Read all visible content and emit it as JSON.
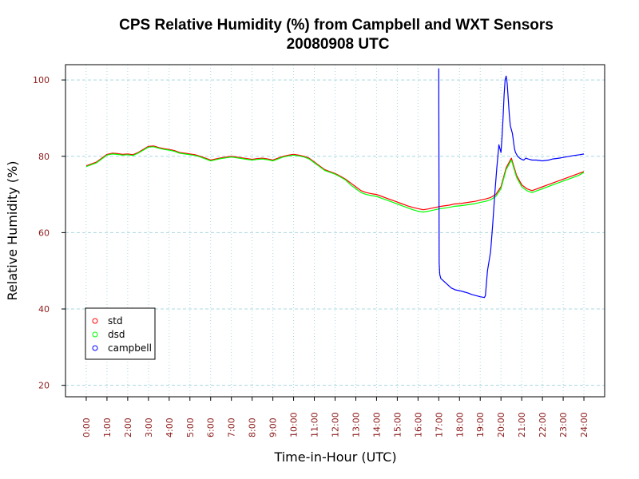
{
  "chart_data": {
    "type": "line",
    "title": "CPS Relative Humidity (%) from Campbell and WXT Sensors",
    "subtitle": "20080908  UTC",
    "xlabel": "Time-in-Hour (UTC)",
    "ylabel": "Relative Humidity (%)",
    "xlim": [
      -1,
      25
    ],
    "ylim": [
      17,
      104
    ],
    "yticks": [
      20,
      40,
      60,
      80,
      100
    ],
    "yticklabels": [
      "20",
      "40",
      "60",
      "80",
      "100"
    ],
    "xticks": [
      0,
      1,
      2,
      3,
      4,
      5,
      6,
      7,
      8,
      9,
      10,
      11,
      12,
      13,
      14,
      15,
      16,
      17,
      18,
      19,
      20,
      21,
      22,
      23,
      24
    ],
    "xticklabels": [
      "0:00",
      "1:00",
      "2:00",
      "3:00",
      "4:00",
      "5:00",
      "6:00",
      "7:00",
      "8:00",
      "9:00",
      "10:00",
      "11:00",
      "12:00",
      "13:00",
      "14:00",
      "15:00",
      "16:00",
      "17:00",
      "18:00",
      "19:00",
      "20:00",
      "21:00",
      "22:00",
      "23:00",
      "24:00"
    ],
    "grid": true,
    "legend_position": "bottom-left",
    "series": [
      {
        "name": "std",
        "color": "#ff0000",
        "x": [
          0,
          0.25,
          0.5,
          0.75,
          1,
          1.25,
          1.5,
          1.75,
          2,
          2.25,
          2.5,
          2.75,
          3,
          3.25,
          3.5,
          3.75,
          4,
          4.25,
          4.5,
          4.75,
          5,
          5.25,
          5.5,
          5.75,
          6,
          6.25,
          6.5,
          6.75,
          7,
          7.25,
          7.5,
          7.75,
          8,
          8.25,
          8.5,
          8.75,
          9,
          9.25,
          9.5,
          9.75,
          10,
          10.25,
          10.5,
          10.75,
          11,
          11.25,
          11.5,
          11.75,
          12,
          12.25,
          12.5,
          12.75,
          13,
          13.25,
          13.5,
          13.75,
          14,
          14.25,
          14.5,
          14.75,
          15,
          15.25,
          15.5,
          15.75,
          16,
          16.25,
          16.5,
          16.75,
          17,
          17.25,
          17.5,
          17.75,
          18,
          18.25,
          18.5,
          18.75,
          19,
          19.25,
          19.5,
          19.75,
          20,
          20.25,
          20.5,
          20.75,
          21,
          21.25,
          21.5,
          21.75,
          22,
          22.25,
          22.5,
          22.75,
          23,
          23.25,
          23.5,
          23.75,
          24
        ],
        "values": [
          77.5,
          78,
          78.5,
          79.5,
          80.5,
          80.8,
          80.7,
          80.5,
          80.6,
          80.4,
          81,
          81.8,
          82.6,
          82.7,
          82.3,
          82,
          81.8,
          81.5,
          81,
          80.8,
          80.6,
          80.4,
          80,
          79.5,
          79,
          79.3,
          79.6,
          79.8,
          80,
          79.8,
          79.6,
          79.4,
          79.2,
          79.4,
          79.5,
          79.3,
          79,
          79.5,
          80,
          80.3,
          80.5,
          80.3,
          80,
          79.5,
          78.5,
          77.5,
          76.5,
          76,
          75.5,
          74.8,
          74,
          73,
          72,
          71,
          70.5,
          70.2,
          70,
          69.5,
          69,
          68.5,
          68,
          67.5,
          67,
          66.6,
          66.3,
          66,
          66.2,
          66.5,
          66.8,
          67,
          67.2,
          67.5,
          67.6,
          67.8,
          68,
          68.2,
          68.5,
          68.8,
          69.2,
          70,
          72,
          77,
          79.5,
          75,
          72.5,
          71.5,
          71,
          71.5,
          72,
          72.5,
          73,
          73.5,
          74,
          74.5,
          75,
          75.5,
          76
        ]
      },
      {
        "name": "dsd",
        "color": "#00ff00",
        "x": [
          0,
          0.25,
          0.5,
          0.75,
          1,
          1.25,
          1.5,
          1.75,
          2,
          2.25,
          2.5,
          2.75,
          3,
          3.25,
          3.5,
          3.75,
          4,
          4.25,
          4.5,
          4.75,
          5,
          5.25,
          5.5,
          5.75,
          6,
          6.25,
          6.5,
          6.75,
          7,
          7.25,
          7.5,
          7.75,
          8,
          8.25,
          8.5,
          8.75,
          9,
          9.25,
          9.5,
          9.75,
          10,
          10.25,
          10.5,
          10.75,
          11,
          11.25,
          11.5,
          11.75,
          12,
          12.25,
          12.5,
          12.75,
          13,
          13.25,
          13.5,
          13.75,
          14,
          14.25,
          14.5,
          14.75,
          15,
          15.25,
          15.5,
          15.75,
          16,
          16.25,
          16.5,
          16.75,
          17,
          17.25,
          17.5,
          17.75,
          18,
          18.25,
          18.5,
          18.75,
          19,
          19.25,
          19.5,
          19.75,
          20,
          20.25,
          20.5,
          20.75,
          21,
          21.25,
          21.5,
          21.75,
          22,
          22.25,
          22.5,
          22.75,
          23,
          23.25,
          23.5,
          23.75,
          24
        ],
        "values": [
          77.3,
          77.8,
          78.3,
          79.3,
          80.3,
          80.6,
          80.5,
          80.3,
          80.4,
          80.2,
          80.8,
          81.6,
          82.4,
          82.5,
          82.1,
          81.8,
          81.6,
          81.3,
          80.8,
          80.6,
          80.4,
          80.2,
          79.8,
          79.3,
          78.8,
          79.1,
          79.4,
          79.6,
          79.8,
          79.6,
          79.4,
          79.2,
          79,
          79.2,
          79.3,
          79.1,
          78.8,
          79.3,
          79.8,
          80.1,
          80.3,
          80.1,
          79.8,
          79.3,
          78.3,
          77.3,
          76.3,
          75.8,
          75.3,
          74.6,
          73.8,
          72.5,
          71.5,
          70.5,
          70,
          69.7,
          69.5,
          69,
          68.5,
          68,
          67.5,
          67,
          66.5,
          66,
          65.6,
          65.4,
          65.6,
          65.9,
          66.2,
          66.4,
          66.6,
          66.9,
          67,
          67.2,
          67.4,
          67.6,
          67.9,
          68.2,
          68.6,
          69.5,
          71.5,
          76.5,
          79,
          74.5,
          72,
          71,
          70.5,
          71,
          71.5,
          72,
          72.5,
          73,
          73.5,
          74,
          74.5,
          75,
          75.8
        ]
      },
      {
        "name": "campbell",
        "color": "#0000ff",
        "x": [
          17.0,
          17.02,
          17.05,
          17.1,
          17.2,
          17.3,
          17.4,
          17.5,
          17.6,
          17.8,
          18,
          18.2,
          18.4,
          18.6,
          18.8,
          19,
          19.2,
          19.25,
          19.35,
          19.5,
          19.6,
          19.7,
          19.8,
          19.9,
          20,
          20.05,
          20.1,
          20.15,
          20.2,
          20.25,
          20.3,
          20.35,
          20.4,
          20.45,
          20.5,
          20.55,
          20.6,
          20.65,
          20.7,
          20.8,
          20.9,
          21,
          21.1,
          21.2,
          21.3,
          21.5,
          21.7,
          22,
          22.3,
          22.5,
          22.8,
          23,
          23.3,
          23.5,
          23.8,
          24
        ],
        "values": [
          103,
          52,
          49,
          48,
          47.5,
          47,
          46.5,
          46,
          45.5,
          45,
          44.8,
          44.5,
          44.2,
          43.8,
          43.5,
          43.2,
          43,
          43.5,
          50,
          55,
          62,
          70,
          77,
          83,
          81,
          85,
          90,
          96,
          100,
          101,
          99,
          95,
          91,
          88,
          87,
          86,
          84,
          82,
          81,
          80,
          79.5,
          79.2,
          79,
          79.5,
          79.3,
          79,
          79,
          78.8,
          79,
          79.3,
          79.5,
          79.7,
          80,
          80.2,
          80.4,
          80.6
        ]
      }
    ]
  }
}
